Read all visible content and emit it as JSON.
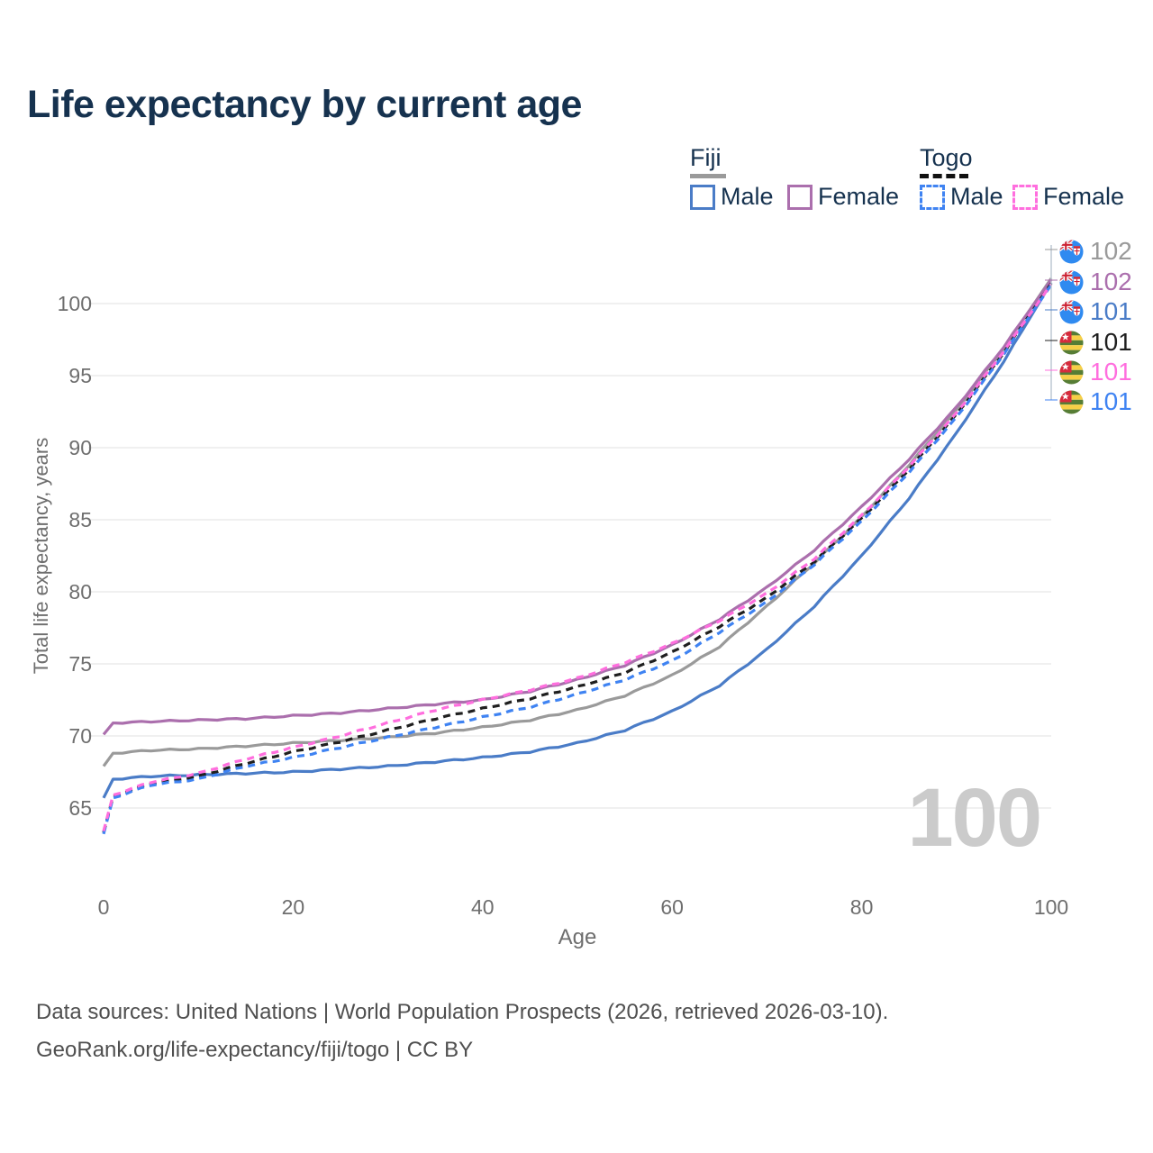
{
  "title": "Life expectancy by current age",
  "legend": {
    "fiji": {
      "label": "Fiji",
      "male": "Male",
      "female": "Female"
    },
    "togo": {
      "label": "Togo",
      "male": "Male",
      "female": "Female"
    }
  },
  "watermark_age": "100",
  "footer": {
    "line1": "Data sources: United Nations | World Population Prospects (2026, retrieved 2026-03-10).",
    "line2": "GeoRank.org/life-expectancy/fiji/togo | CC BY"
  },
  "colors": {
    "title_text": "#16324f",
    "axis_text": "#6e6e6e",
    "grid": "#ececec",
    "watermark": "#cbcbcb",
    "leader_line": "#b9c4cf"
  },
  "end_labels": [
    {
      "value": "102",
      "country": "Fiji",
      "color": "#9a9a9a"
    },
    {
      "value": "102",
      "country": "Fiji",
      "color": "#ab6fad"
    },
    {
      "value": "101",
      "country": "Fiji",
      "color": "#4a7cc7"
    },
    {
      "value": "101",
      "country": "Togo",
      "color": "#1f1f1f"
    },
    {
      "value": "101",
      "country": "Togo",
      "color": "#ff6ede"
    },
    {
      "value": "101",
      "country": "Togo",
      "color": "#3f83f2"
    }
  ],
  "chart_data": {
    "type": "line",
    "title": "Life expectancy by current age",
    "xlabel": "Age",
    "ylabel": "Total life expectancy, years",
    "xlim": [
      0,
      100
    ],
    "ylim": [
      62,
      103
    ],
    "x_ticks": [
      0,
      20,
      40,
      60,
      80,
      100
    ],
    "y_ticks": [
      65,
      70,
      75,
      80,
      85,
      90,
      95,
      100
    ],
    "grid": "horizontal",
    "legend_position": "top-right",
    "ages": [
      0,
      1,
      5,
      10,
      15,
      20,
      25,
      30,
      35,
      40,
      45,
      50,
      55,
      60,
      65,
      70,
      75,
      80,
      85,
      90,
      95,
      100
    ],
    "series": [
      {
        "id": "fiji-both",
        "name": "Fiji (both sexes)",
        "country": "Fiji",
        "sex": "Both",
        "style": "solid",
        "color": "#9a9a9a",
        "end_label": "102",
        "values": [
          67.9,
          68.8,
          69.0,
          69.1,
          69.3,
          69.5,
          69.7,
          69.9,
          70.2,
          70.6,
          71.1,
          71.8,
          72.8,
          74.2,
          76.2,
          79.0,
          82.0,
          85.2,
          88.8,
          92.6,
          96.9,
          101.75
        ]
      },
      {
        "id": "fiji-male",
        "name": "Fiji Male",
        "country": "Fiji",
        "sex": "Male",
        "style": "solid",
        "color": "#4a7cc7",
        "end_label": "101",
        "values": [
          65.7,
          67.0,
          67.2,
          67.3,
          67.4,
          67.5,
          67.7,
          67.9,
          68.2,
          68.5,
          68.9,
          69.5,
          70.4,
          71.7,
          73.5,
          76.0,
          79.0,
          82.5,
          86.5,
          91.0,
          96.0,
          101.45
        ]
      },
      {
        "id": "fiji-female",
        "name": "Fiji Female",
        "country": "Fiji",
        "sex": "Female",
        "style": "solid",
        "color": "#ab6fad",
        "end_label": "102",
        "values": [
          70.1,
          70.9,
          71.0,
          71.1,
          71.2,
          71.4,
          71.6,
          71.9,
          72.2,
          72.5,
          73.1,
          73.9,
          74.9,
          76.3,
          78.1,
          80.3,
          82.9,
          85.9,
          89.2,
          92.8,
          97.0,
          101.65
        ]
      },
      {
        "id": "togo-both",
        "name": "Togo (both sexes)",
        "country": "Togo",
        "sex": "Both",
        "style": "dashed",
        "color": "#1f1f1f",
        "end_label": "101",
        "values": [
          63.3,
          65.8,
          66.7,
          67.2,
          68.1,
          68.9,
          69.6,
          70.4,
          71.2,
          71.9,
          72.6,
          73.4,
          74.4,
          75.8,
          77.6,
          79.6,
          82.1,
          85.1,
          88.5,
          92.3,
          96.6,
          101.4
        ]
      },
      {
        "id": "togo-male",
        "name": "Togo Male",
        "country": "Togo",
        "sex": "Male",
        "style": "dashed",
        "color": "#3f83f2",
        "end_label": "101",
        "values": [
          63.2,
          65.7,
          66.6,
          67.0,
          67.9,
          68.5,
          69.2,
          69.9,
          70.6,
          71.3,
          72.0,
          72.9,
          73.9,
          75.2,
          77.2,
          79.3,
          81.9,
          84.9,
          88.3,
          92.1,
          96.5,
          101.3
        ]
      },
      {
        "id": "togo-female",
        "name": "Togo Female",
        "country": "Togo",
        "sex": "Female",
        "style": "dashed",
        "color": "#ff6ede",
        "end_label": "101",
        "values": [
          63.4,
          65.9,
          66.8,
          67.4,
          68.4,
          69.2,
          70.0,
          70.9,
          71.8,
          72.5,
          73.2,
          74.0,
          75.1,
          76.4,
          78.0,
          79.9,
          82.3,
          85.3,
          88.7,
          92.4,
          96.7,
          101.35
        ]
      }
    ]
  }
}
